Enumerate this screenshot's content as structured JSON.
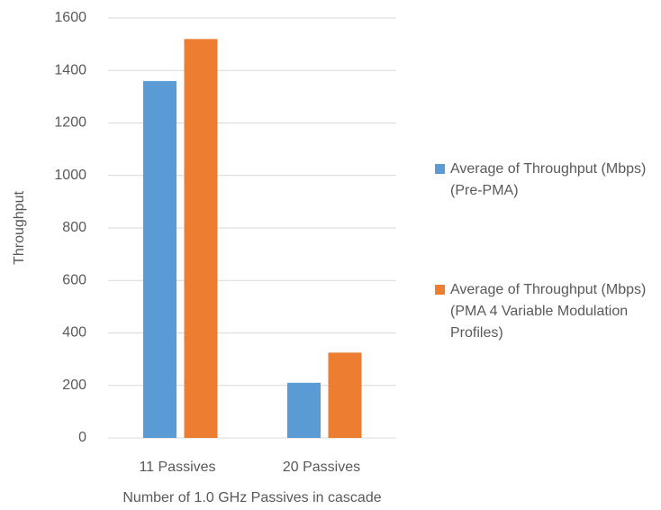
{
  "chart_data": {
    "type": "bar",
    "y_label": "Throughput",
    "x_label": "Number of 1.0 GHz Passives in cascade",
    "categories": [
      "11 Passives",
      "20 Passives"
    ],
    "series": [
      {
        "name": "Average of Throughput (Mbps) (Pre-PMA)",
        "color": "#5b9bd5",
        "values": [
          1360,
          210
        ]
      },
      {
        "name": "Average of Throughput (Mbps) (PMA 4 Variable Modulation Profiles)",
        "color": "#ed7d31",
        "values": [
          1520,
          325
        ]
      }
    ],
    "ylim": [
      0,
      1600
    ],
    "yticks": [
      0,
      200,
      400,
      600,
      800,
      1000,
      1200,
      1400,
      1600
    ],
    "grid": true,
    "legend": "right"
  }
}
